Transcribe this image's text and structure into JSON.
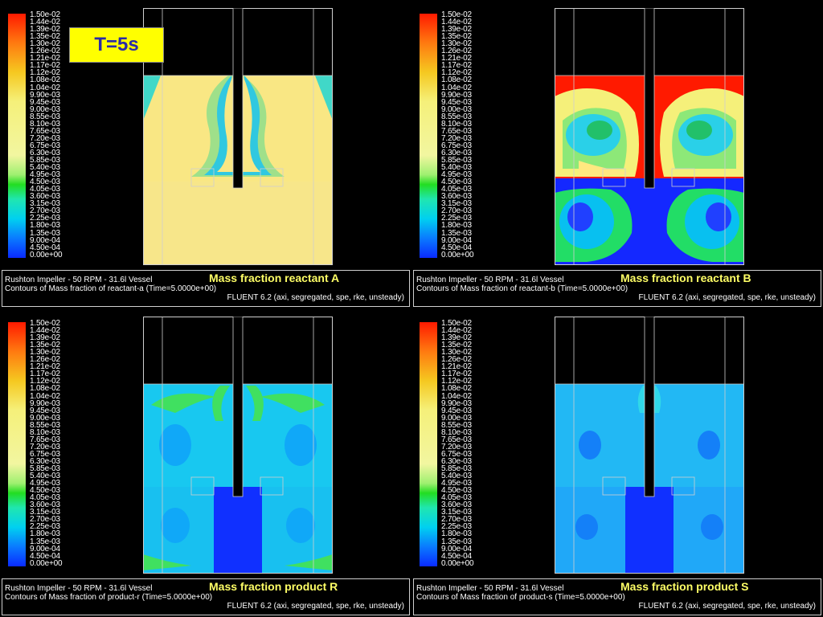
{
  "time_badge": "T=5s",
  "scale_labels": [
    "1.50e-02",
    "1.44e-02",
    "1.39e-02",
    "1.35e-02",
    "1.30e-02",
    "1.26e-02",
    "1.21e-02",
    "1.17e-02",
    "1.12e-02",
    "1.08e-02",
    "1.04e-02",
    "9.90e-03",
    "9.45e-03",
    "9.00e-03",
    "8.55e-03",
    "8.10e-03",
    "7.65e-03",
    "7.20e-03",
    "6.75e-03",
    "6.30e-03",
    "5.85e-03",
    "5.40e-03",
    "4.95e-03",
    "4.50e-03",
    "4.05e-03",
    "3.60e-03",
    "3.15e-03",
    "2.70e-03",
    "2.25e-03",
    "1.80e-03",
    "1.35e-03",
    "9.00e-04",
    "4.50e-04",
    "0.00e+00"
  ],
  "panels": [
    {
      "title": "Mass fraction reactant A",
      "line1": "Rushton Impeller - 50 RPM - 31.6l Vessel",
      "line2": "Contours of Mass fraction of reactant-a  (Time=5.0000e+00)",
      "line3": "FLUENT 6.2 (axi, segregated, spe, rke, unsteady)"
    },
    {
      "title": "Mass fraction reactant B",
      "line1": "Rushton Impeller - 50 RPM - 31.6l Vessel",
      "line2": "Contours of Mass fraction of reactant-b  (Time=5.0000e+00)",
      "line3": "FLUENT 6.2 (axi, segregated, spe, rke, unsteady)"
    },
    {
      "title": "Mass fraction product R",
      "line1": "Rushton Impeller - 50 RPM - 31.6l Vessel",
      "line2": "Contours of Mass fraction of product-r  (Time=5.0000e+00)",
      "line3": "FLUENT 6.2 (axi, segregated, spe, rke, unsteady)"
    },
    {
      "title": "Mass fraction product S",
      "line1": "Rushton Impeller - 50 RPM - 31.6l Vessel",
      "line2": "Contours of Mass fraction of product-s  (Time=5.0000e+00)",
      "line3": "FLUENT 6.2 (axi, segregated, spe, rke, unsteady)"
    }
  ],
  "colors": {
    "scale_red": "#ff1a00",
    "scale_yellow": "#f5f07a",
    "scale_green": "#22dd22",
    "scale_cyan": "#00d0f0",
    "scale_blue": "#0a2aff",
    "caption_title": "#ffff66",
    "badge_bg": "#ffff00",
    "badge_text": "#2a2aa8"
  }
}
